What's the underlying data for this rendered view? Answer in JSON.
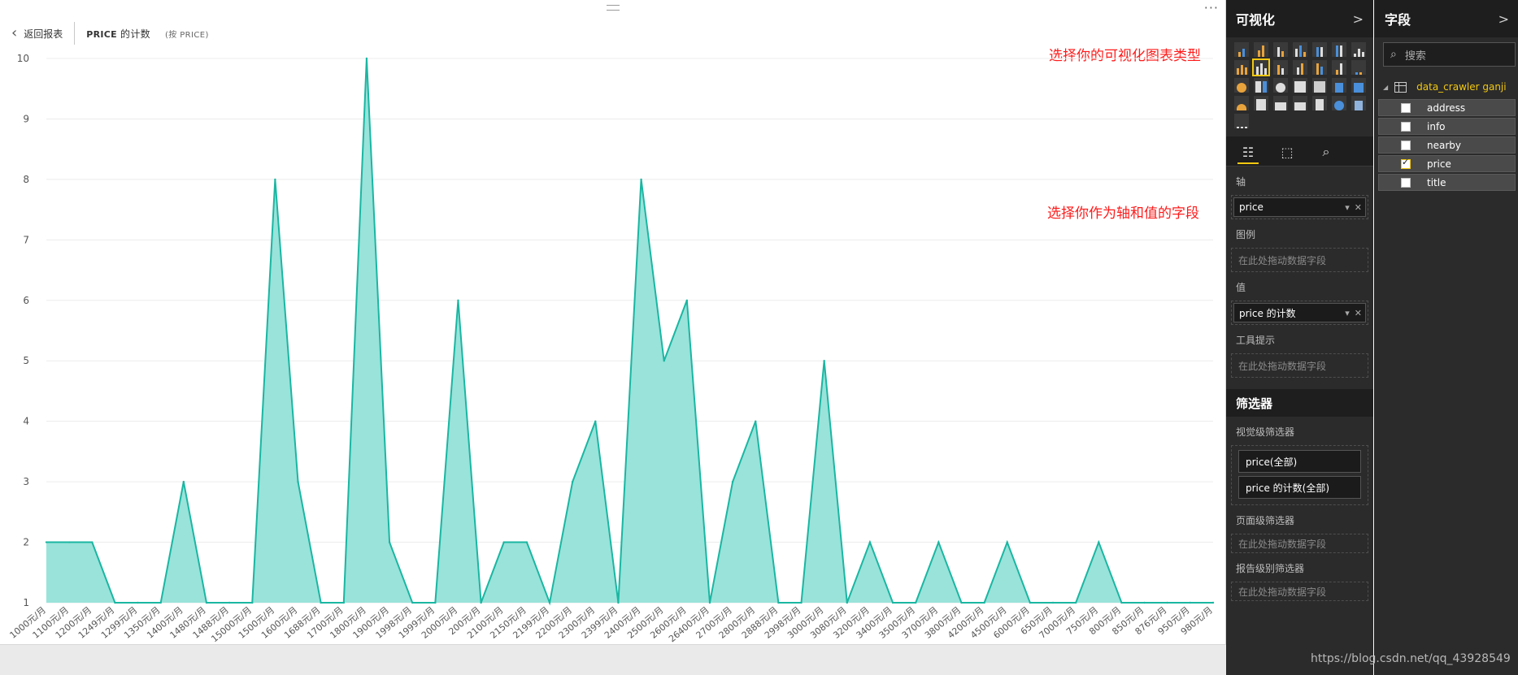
{
  "report": {
    "back_label": "返回报表",
    "visual_title": "PRICE",
    "visual_title_suffix": " 的计数",
    "visual_subtitle": "(按 PRICE)",
    "more_glyph": "···"
  },
  "annotations": {
    "viz_type_hint": "选择你的可视化图表类型",
    "axis_value_hint": "选择你作为轴和值的字段"
  },
  "chart_data": {
    "type": "area",
    "title": "",
    "xlabel": "",
    "ylabel": "",
    "ylim": [
      1,
      10
    ],
    "yticks": [
      1,
      2,
      3,
      4,
      5,
      6,
      7,
      8,
      9,
      10
    ],
    "grid": true,
    "fill_color": "#99e3da",
    "line_color": "#1ab6a2",
    "categories": [
      "1000元/月",
      "1100元/月",
      "1200元/月",
      "1249元/月",
      "1299元/月",
      "1350元/月",
      "1400元/月",
      "1480元/月",
      "1488元/月",
      "15000元/月",
      "1500元/月",
      "1600元/月",
      "1688元/月",
      "1700元/月",
      "1800元/月",
      "1900元/月",
      "1998元/月",
      "1999元/月",
      "2000元/月",
      "200元/月",
      "2100元/月",
      "2150元/月",
      "2199元/月",
      "2200元/月",
      "2300元/月",
      "2399元/月",
      "2400元/月",
      "2500元/月",
      "2600元/月",
      "26400元/月",
      "2700元/月",
      "2800元/月",
      "2888元/月",
      "2998元/月",
      "3000元/月",
      "3080元/月",
      "3200元/月",
      "3400元/月",
      "3500元/月",
      "3700元/月",
      "3800元/月",
      "4200元/月",
      "4500元/月",
      "6000元/月",
      "650元/月",
      "7000元/月",
      "750元/月",
      "800元/月",
      "850元/月",
      "876元/月",
      "950元/月",
      "980元/月"
    ],
    "values": [
      2,
      2,
      2,
      1,
      1,
      1,
      3,
      1,
      1,
      1,
      8,
      3,
      1,
      1,
      10,
      2,
      1,
      1,
      6,
      1,
      2,
      2,
      1,
      3,
      4,
      1,
      8,
      5,
      6,
      1,
      3,
      4,
      1,
      1,
      5,
      1,
      2,
      1,
      1,
      2,
      1,
      1,
      2,
      1,
      1,
      1,
      2,
      1,
      1,
      1,
      1,
      1
    ]
  },
  "viz_pane": {
    "title": "可视化",
    "chevron": ">",
    "tabs": [
      "fields-tab",
      "format-tab",
      "analytics-tab"
    ],
    "axis_label": "轴",
    "axis_field": "price",
    "legend_label": "图例",
    "legend_placeholder": "在此处拖动数据字段",
    "values_label": "值",
    "values_field": "price 的计数",
    "tooltip_label": "工具提示",
    "tooltip_placeholder": "在此处拖动数据字段",
    "filters_title": "筛选器",
    "visual_filters_label": "视觉级筛选器",
    "visual_filters": [
      "price(全部)",
      "price 的计数(全部)"
    ],
    "page_filters_label": "页面级筛选器",
    "page_filters_placeholder": "在此处拖动数据字段",
    "report_filters_label": "报告级别筛选器",
    "report_filters_placeholder": "在此处拖动数据字段",
    "accent": "#f2c811"
  },
  "fields_pane": {
    "title": "字段",
    "chevron": ">",
    "search_placeholder": "搜索",
    "table_name": "data_crawler ganji",
    "fields": [
      {
        "name": "address",
        "checked": false
      },
      {
        "name": "info",
        "checked": false
      },
      {
        "name": "nearby",
        "checked": false
      },
      {
        "name": "price",
        "checked": true
      },
      {
        "name": "title",
        "checked": false
      }
    ]
  },
  "watermark": "https://blog.csdn.net/qq_43928549"
}
